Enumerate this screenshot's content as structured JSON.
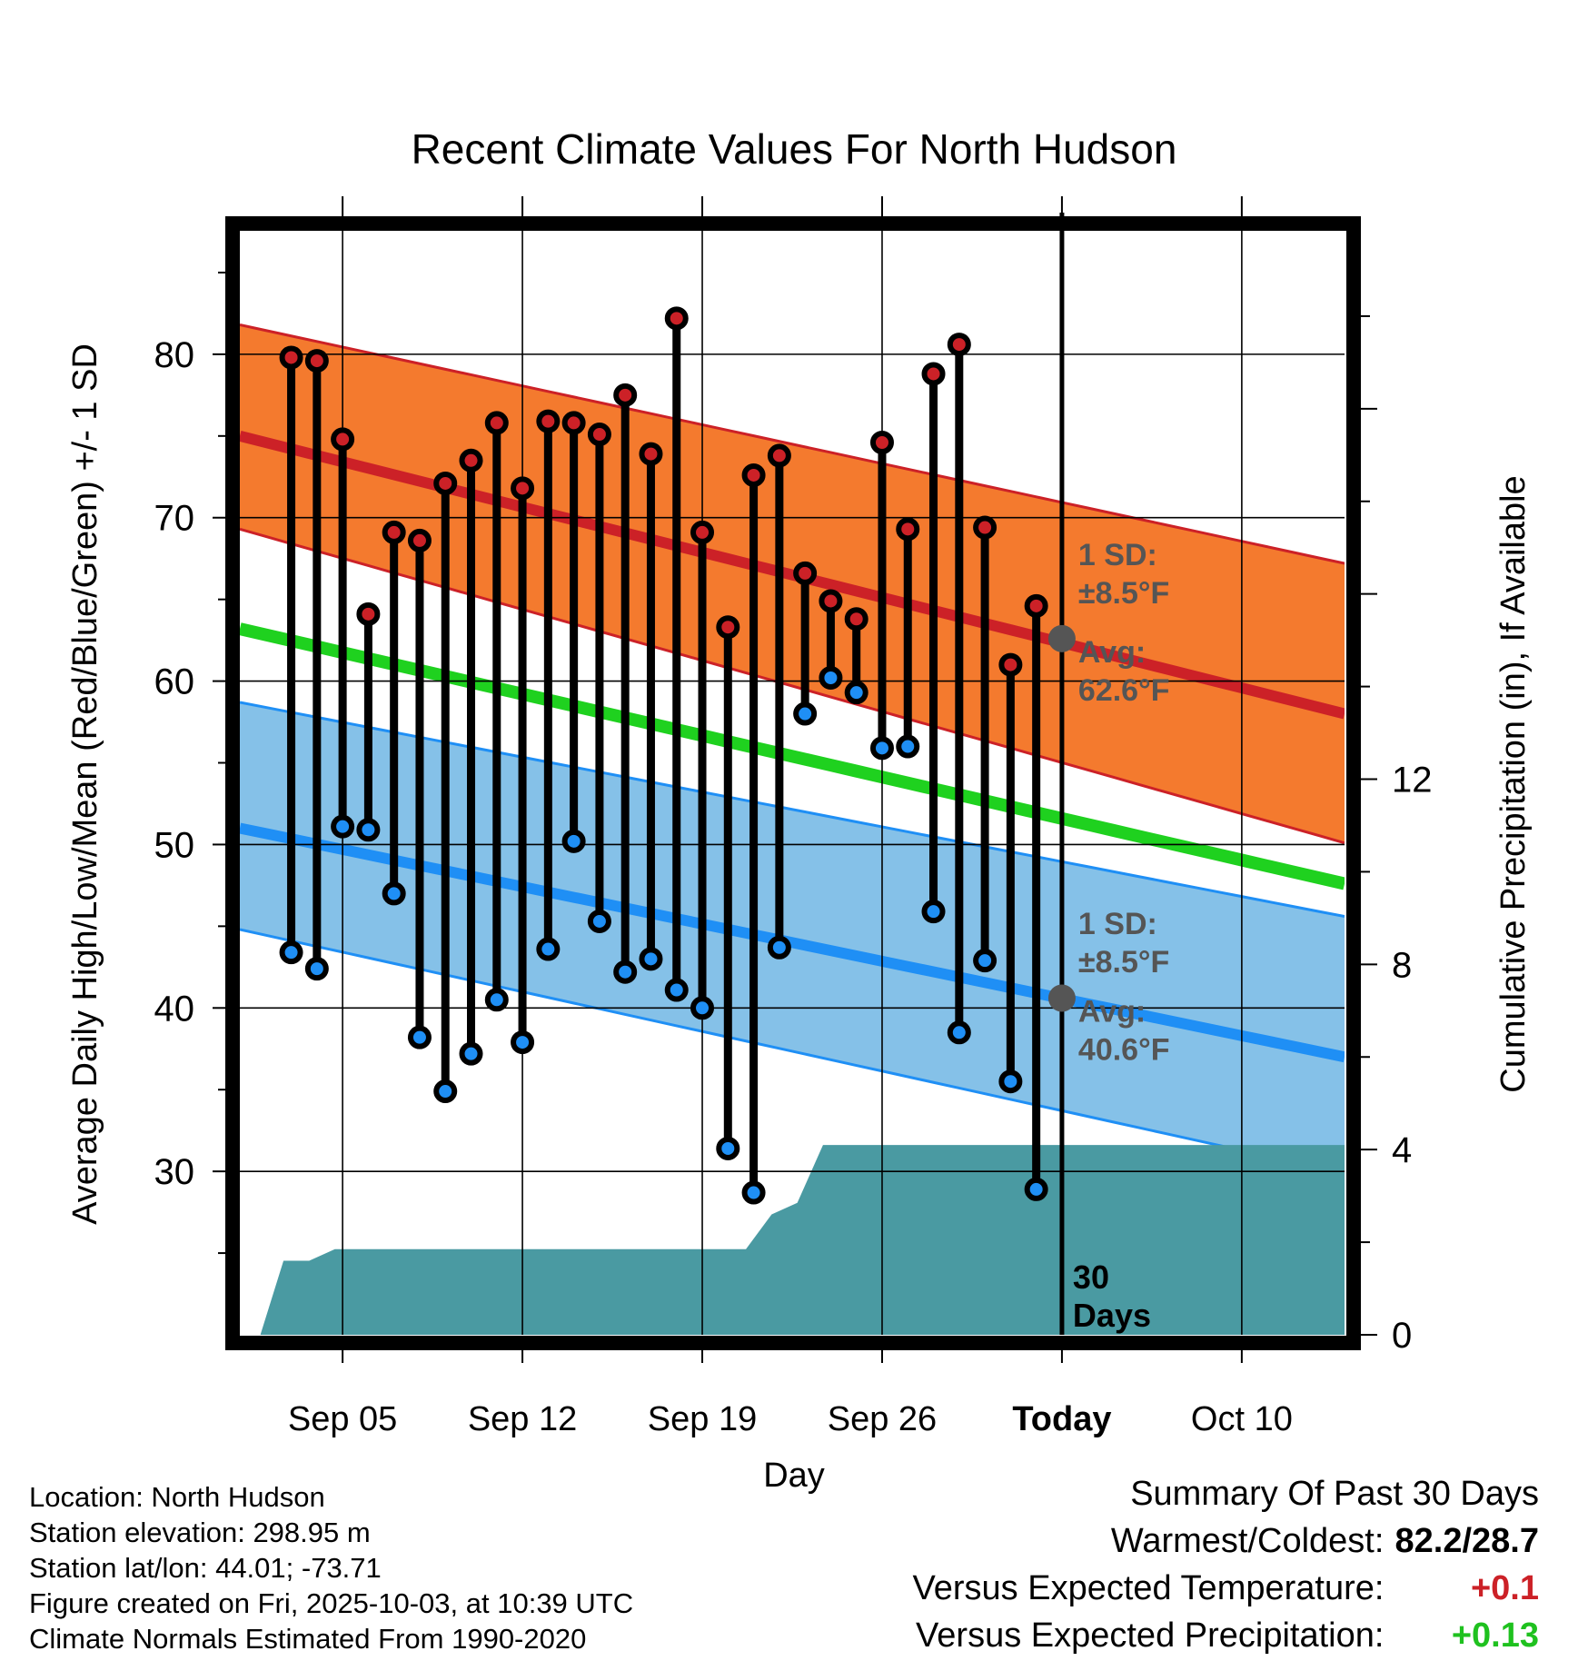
{
  "chart_data": {
    "type": "line",
    "title": "Recent Climate Values For North Hudson",
    "xlabel": "Day",
    "ylabel_left": "Average Daily High/Low/Mean (Red/Blue/Green) +/- 1 SD",
    "ylabel_right": "Cumulative Precipitation (in), If Available",
    "ylim_left": [
      20,
      88
    ],
    "ylim_right": [
      0,
      24
    ],
    "x_domain_days": [
      0,
      43
    ],
    "x_ticks": [
      {
        "day": 4,
        "label": "Sep 05"
      },
      {
        "day": 11,
        "label": "Sep 12"
      },
      {
        "day": 18,
        "label": "Sep 19"
      },
      {
        "day": 25,
        "label": "Sep 26"
      },
      {
        "day": 32,
        "label": "Today"
      },
      {
        "day": 39,
        "label": "Oct 10"
      }
    ],
    "y_ticks_left": [
      30,
      40,
      50,
      60,
      70,
      80
    ],
    "y_ticks_right": [
      0,
      4,
      8,
      12
    ],
    "normals": {
      "high_mean": [
        75.0,
        58.0
      ],
      "high_upper": [
        81.8,
        67.2
      ],
      "high_lower": [
        69.3,
        50.1
      ],
      "mean": [
        63.2,
        47.6
      ],
      "low_mean": [
        51.0,
        37.0
      ],
      "low_upper": [
        58.7,
        45.6
      ],
      "low_lower": [
        44.8,
        29.9
      ]
    },
    "daily": [
      {
        "day": 2,
        "high": 79.8,
        "low": 43.4
      },
      {
        "day": 3,
        "high": 79.6,
        "low": 42.4
      },
      {
        "day": 4,
        "high": 74.8,
        "low": 51.1
      },
      {
        "day": 5,
        "high": 64.1,
        "low": 50.9
      },
      {
        "day": 6,
        "high": 69.1,
        "low": 47.0
      },
      {
        "day": 7,
        "high": 68.6,
        "low": 38.2
      },
      {
        "day": 8,
        "high": 72.1,
        "low": 34.9
      },
      {
        "day": 9,
        "high": 73.5,
        "low": 37.2
      },
      {
        "day": 10,
        "high": 75.8,
        "low": 40.5
      },
      {
        "day": 11,
        "high": 71.8,
        "low": 37.9
      },
      {
        "day": 12,
        "high": 75.9,
        "low": 43.6
      },
      {
        "day": 13,
        "high": 75.8,
        "low": 50.2
      },
      {
        "day": 14,
        "high": 75.1,
        "low": 45.3
      },
      {
        "day": 15,
        "high": 77.5,
        "low": 42.2
      },
      {
        "day": 16,
        "high": 73.9,
        "low": 43.0
      },
      {
        "day": 17,
        "high": 82.2,
        "low": 41.1
      },
      {
        "day": 18,
        "high": 69.1,
        "low": 40.0
      },
      {
        "day": 19,
        "high": 63.3,
        "low": 31.4
      },
      {
        "day": 20,
        "high": 72.6,
        "low": 28.7
      },
      {
        "day": 21,
        "high": 73.8,
        "low": 43.7
      },
      {
        "day": 22,
        "high": 66.6,
        "low": 58.0
      },
      {
        "day": 23,
        "high": 64.9,
        "low": 60.2
      },
      {
        "day": 24,
        "high": 63.8,
        "low": 59.3
      },
      {
        "day": 25,
        "high": 74.6,
        "low": 55.9
      },
      {
        "day": 26,
        "high": 69.3,
        "low": 56.0
      },
      {
        "day": 27,
        "high": 78.8,
        "low": 45.9
      },
      {
        "day": 28,
        "high": 80.6,
        "low": 38.5
      },
      {
        "day": 29,
        "high": 69.4,
        "low": 42.9
      },
      {
        "day": 30,
        "high": 61.0,
        "low": 35.5
      },
      {
        "day": 31,
        "high": 64.6,
        "low": 28.9
      }
    ],
    "cumulative_precip": [
      {
        "day": 0.8,
        "value": 0.0
      },
      {
        "day": 1.7,
        "value": 1.6
      },
      {
        "day": 2.7,
        "value": 1.6
      },
      {
        "day": 3.7,
        "value": 1.85
      },
      {
        "day": 19.7,
        "value": 1.85
      },
      {
        "day": 20.7,
        "value": 2.6
      },
      {
        "day": 21.7,
        "value": 2.85
      },
      {
        "day": 22.7,
        "value": 4.1
      },
      {
        "day": 23.7,
        "value": 4.1
      },
      {
        "day": 32.0,
        "value": 4.1
      },
      {
        "day": 43.0,
        "value": 4.1
      }
    ],
    "today_marker": {
      "day": 32,
      "label": "30 Days"
    },
    "annotations": {
      "high": {
        "sd_label": "1 SD:",
        "sd_value": "±8.5°F",
        "avg_label": "Avg:",
        "avg_value": "62.6°F",
        "avg": 62.6
      },
      "low": {
        "sd_label": "1 SD:",
        "sd_value": "±8.5°F",
        "avg_label": "Avg:",
        "avg_value": "40.6°F",
        "avg": 40.6
      }
    },
    "colors": {
      "high_band": "#f47a2e",
      "high_line": "#cc2127",
      "low_band": "#85c1e8",
      "low_line": "#1f8ff5",
      "mean_line": "#1fd11f",
      "precip": "#4a9aa2",
      "annotation": "#555555",
      "high_dot": "#cc2127",
      "low_dot": "#1f8ff5"
    }
  },
  "footer": {
    "location": "Location: North Hudson",
    "elevation": "Station elevation: 298.95 m",
    "latlon": "Station lat/lon: 44.01; -73.71",
    "created": "Figure created on Fri, 2025-10-03, at 10:39 UTC",
    "normals": "Climate Normals Estimated From 1990-2020"
  },
  "summary": {
    "heading": "Summary Of Past 30 Days",
    "warm_cold_label": "Warmest/Coldest:",
    "warm_cold_value": "82.2/28.7",
    "temp_label": "Versus Expected Temperature:",
    "temp_value": "+0.1",
    "temp_color": "#cc2127",
    "precip_label": "Versus Expected Precipitation:",
    "precip_value": "+0.13",
    "precip_color": "#1fc11f"
  }
}
